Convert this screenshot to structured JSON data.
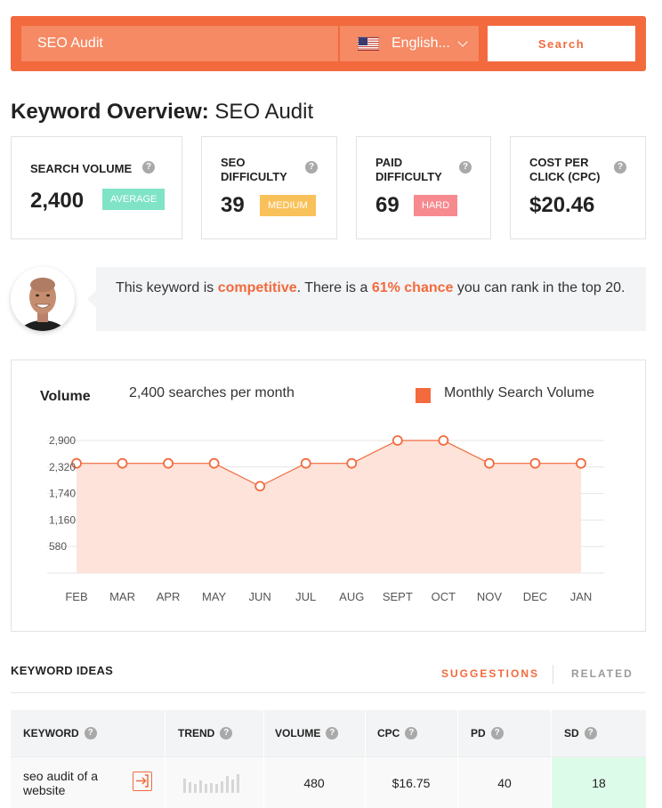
{
  "search": {
    "value": "SEO Audit",
    "language": "English...",
    "button_label": "Search"
  },
  "overview": {
    "title_bold": "Keyword Overview:",
    "keyword": "SEO Audit"
  },
  "metrics": {
    "search_volume": {
      "label": "SEARCH VOLUME",
      "value": "2,400",
      "badge": "AVERAGE"
    },
    "seo_difficulty": {
      "label_line1": "SEO",
      "label_line2": "DIFFICULTY",
      "value": "39",
      "badge": "MEDIUM"
    },
    "paid_difficulty": {
      "label_line1": "PAID",
      "label_line2": "DIFFICULTY",
      "value": "69",
      "badge": "HARD"
    },
    "cpc": {
      "label_line1": "COST PER",
      "label_line2": "CLICK (CPC)",
      "value": "$20.46"
    }
  },
  "insight": {
    "part1": "This keyword is ",
    "highlight1": "competitive",
    "part2": ". There is a ",
    "highlight2": "61% chance",
    "part3": " you can rank in the top 20."
  },
  "chart_data": {
    "type": "area",
    "title": "Volume",
    "subtitle": "2,400 searches per month",
    "legend": "Monthly Search Volume",
    "categories": [
      "FEB",
      "MAR",
      "APR",
      "MAY",
      "JUN",
      "JUL",
      "AUG",
      "SEPT",
      "OCT",
      "NOV",
      "DEC",
      "JAN"
    ],
    "series": [
      {
        "name": "Monthly Search Volume",
        "values": [
          2400,
          2400,
          2400,
          2400,
          1900,
          2400,
          2400,
          2900,
          2900,
          2400,
          2400,
          2400
        ]
      }
    ],
    "yticks": [
      "2,900",
      "2,320",
      "1,740",
      "1,160",
      "580"
    ],
    "ytick_values": [
      2900,
      2320,
      1740,
      1160,
      580
    ],
    "ylim": [
      0,
      2900
    ],
    "grid": true,
    "color": "#f26a3d",
    "fill": "#fde3da"
  },
  "ideas": {
    "title": "KEYWORD IDEAS",
    "tab_suggestions": "SUGGESTIONS",
    "tab_related": "RELATED",
    "columns": [
      "KEYWORD",
      "TREND",
      "VOLUME",
      "CPC",
      "PD",
      "SD"
    ],
    "rows": [
      {
        "keyword": "seo audit of a website",
        "volume": "480",
        "cpc": "$16.75",
        "pd": "40",
        "sd": "18"
      }
    ]
  },
  "icons": {
    "help": "?",
    "help_icon": "question-circle-icon",
    "flag_icon": "us-flag-icon",
    "go_icon": "arrow-into-box-icon"
  }
}
